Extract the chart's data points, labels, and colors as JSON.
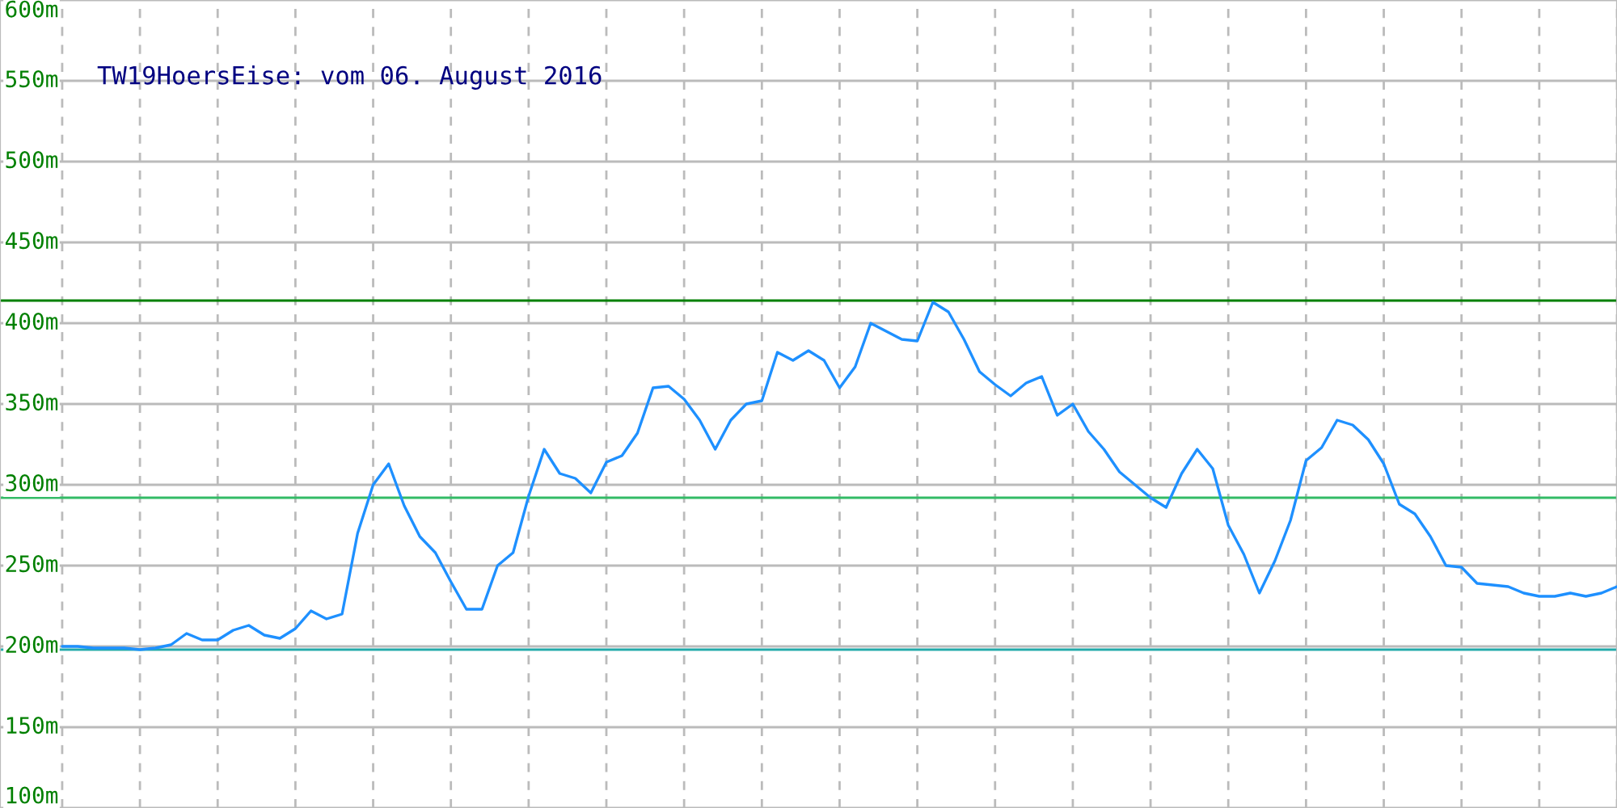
{
  "chart_data": {
    "type": "line",
    "title": "TW19HoersEise: vom 06. August 2016",
    "categories": [
      null,
      null,
      null,
      null,
      null,
      null,
      null,
      null,
      null,
      null,
      null,
      null,
      null,
      null,
      null,
      null,
      null,
      null,
      null,
      null,
      null,
      null,
      null,
      null,
      null,
      null,
      null,
      null,
      null,
      null,
      null,
      null,
      null,
      null,
      null,
      null,
      null,
      null,
      null,
      null,
      null,
      null,
      null,
      null,
      null,
      null,
      null,
      null,
      null,
      null,
      null,
      null,
      null,
      null,
      null,
      null,
      null,
      null,
      null,
      null,
      null,
      null,
      null,
      null,
      null,
      null,
      null,
      null,
      null,
      null,
      null,
      null,
      null,
      null,
      null,
      null,
      null,
      null,
      null,
      null,
      null,
      null,
      null,
      null,
      null,
      null,
      null,
      null,
      null,
      null,
      null,
      null,
      null,
      null,
      null,
      null,
      null,
      null,
      null,
      null,
      null
    ],
    "series": [
      {
        "color": "#1e90ff",
        "values": [
          200,
          200,
          199,
          199,
          199,
          198,
          199,
          201,
          208,
          204,
          204,
          210,
          213,
          207,
          205,
          211,
          222,
          217,
          220,
          270,
          300,
          313,
          287,
          268,
          258,
          240,
          223,
          223,
          250,
          258,
          293,
          322,
          307,
          304,
          295,
          314,
          318,
          332,
          360,
          361,
          353,
          340,
          322,
          340,
          350,
          352,
          382,
          377,
          383,
          377,
          360,
          373,
          400,
          395,
          390,
          389,
          413,
          407,
          390,
          370,
          362,
          355,
          363,
          367,
          343,
          350,
          333,
          322,
          308,
          300,
          292,
          286,
          307,
          322,
          310,
          275,
          257,
          233,
          253,
          278,
          315,
          323,
          340,
          337,
          328,
          313,
          288,
          282,
          268,
          250,
          249,
          239,
          238,
          237,
          233,
          231,
          231,
          233,
          231,
          233,
          237
        ]
      }
    ],
    "ylim": [
      100,
      600
    ],
    "yticks": [
      {
        "value": 100,
        "label": "100m"
      },
      {
        "value": 150,
        "label": "150m"
      },
      {
        "value": 200,
        "label": "200m"
      },
      {
        "value": 250,
        "label": "250m"
      },
      {
        "value": 300,
        "label": "300m"
      },
      {
        "value": 350,
        "label": "350m"
      },
      {
        "value": 400,
        "label": "400m"
      },
      {
        "value": 450,
        "label": "450m"
      },
      {
        "value": 500,
        "label": "500m"
      },
      {
        "value": 550,
        "label": "550m"
      },
      {
        "value": 600,
        "label": "600m"
      }
    ],
    "tick_labels": "y",
    "grid": true,
    "ref_lines": [
      {
        "axis": "y",
        "value": 414,
        "color": "#008000"
      },
      {
        "axis": "y",
        "value": 292,
        "color": "#33bb66"
      },
      {
        "axis": "y",
        "value": 198,
        "color": "#22aaaa"
      }
    ]
  }
}
